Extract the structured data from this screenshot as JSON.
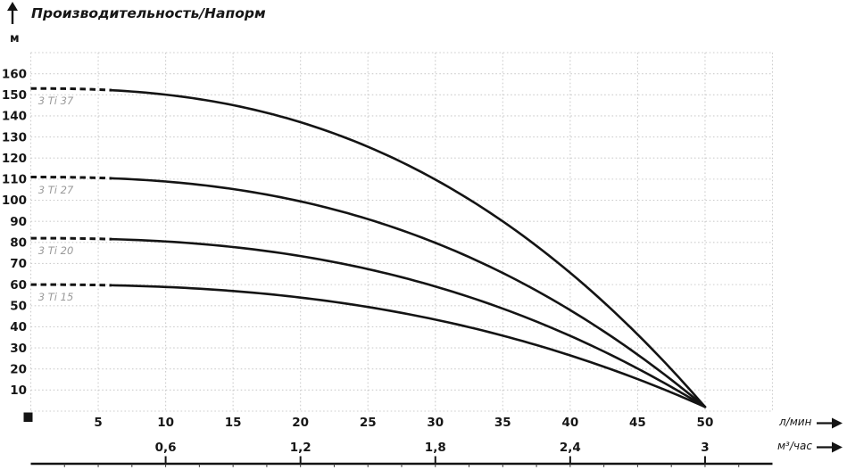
{
  "chart": {
    "title": "Производительность/Напорм",
    "y_axis_unit": "м",
    "x_axis_unit_primary": "л/мин",
    "x_axis_unit_secondary": "м³/час"
  },
  "colors": {
    "curve": "#141414",
    "grid": "#cdcdcd",
    "text": "#161616",
    "curve_label": "#9a9a9a",
    "background": "#ffffff"
  },
  "chart_data": {
    "type": "line",
    "title": "Производительность/Напорм",
    "ylabel": "м",
    "xlabel_primary": "л/мин",
    "xlabel_secondary": "м³/час",
    "xlim": [
      0,
      55
    ],
    "ylim": [
      0,
      170
    ],
    "grid": {
      "visible": true,
      "style": "dotted",
      "x_step": 5,
      "y_step": 10
    },
    "legend_position": "inline-curve-labels",
    "y_ticks": [
      10,
      20,
      30,
      40,
      50,
      60,
      70,
      80,
      90,
      100,
      110,
      120,
      130,
      140,
      150,
      160
    ],
    "x_ticks_primary": [
      5,
      10,
      15,
      20,
      25,
      30,
      35,
      40,
      45,
      50
    ],
    "x_ticks_secondary": [
      {
        "label": "0,6",
        "at_lmin": 10
      },
      {
        "label": "1,2",
        "at_lmin": 20
      },
      {
        "label": "1,8",
        "at_lmin": 30
      },
      {
        "label": "2,4",
        "at_lmin": 40
      },
      {
        "label": "3",
        "at_lmin": 50
      }
    ],
    "q_lmin": [
      0,
      5,
      10,
      15,
      20,
      25,
      30,
      35,
      40,
      45,
      50
    ],
    "series": [
      {
        "name": "3 Ti 37",
        "max_head_m": 153,
        "head_m": [
          153,
          152.5,
          150.1,
          145.1,
          137.0,
          125.4,
          109.8,
          89.9,
          65.6,
          36.4,
          2
        ]
      },
      {
        "name": "3 Ti 27",
        "max_head_m": 111,
        "head_m": [
          111,
          110.6,
          108.9,
          105.3,
          99.5,
          91.1,
          79.8,
          65.5,
          47.9,
          26.8,
          2
        ]
      },
      {
        "name": "3 Ti 20",
        "max_head_m": 82,
        "head_m": [
          82,
          81.7,
          80.4,
          77.8,
          73.5,
          67.4,
          59.1,
          48.6,
          35.7,
          20.2,
          2
        ]
      },
      {
        "name": "3 Ti 15",
        "max_head_m": 60,
        "head_m": [
          60,
          59.8,
          58.9,
          57.0,
          53.9,
          49.4,
          43.4,
          35.8,
          26.4,
          15.2,
          2
        ]
      }
    ],
    "curve_style": {
      "dashed_from_q": 0,
      "dashed_to_q": 6
    },
    "model": {
      "type": "power",
      "exponent": 2.45,
      "q_end": 50,
      "h_end": 2
    }
  }
}
